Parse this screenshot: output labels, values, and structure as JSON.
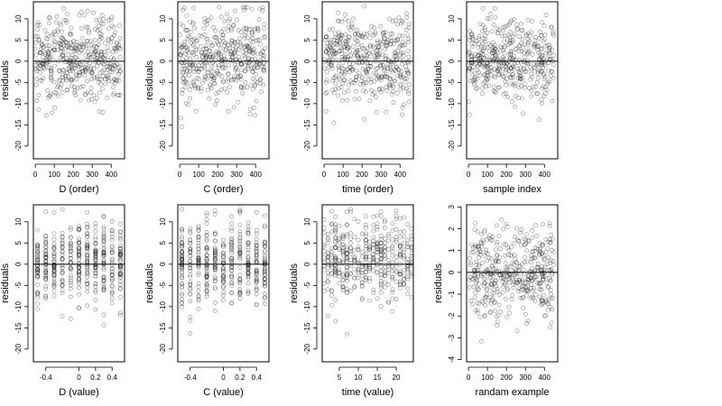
{
  "chart_data": [
    {
      "type": "scatter",
      "xlabel": "D (order)",
      "ylabel": "residuals",
      "xlim": [
        -10,
        470
      ],
      "ylim": [
        -23,
        14
      ],
      "xticks": [
        0,
        100,
        200,
        300,
        400
      ],
      "yticks": [
        -20,
        -15,
        -10,
        -5,
        0,
        5,
        10
      ],
      "reference_line_y": 0,
      "grid": false,
      "n_points": 450,
      "x_distribution": "uniform 0-450",
      "residual_summary": {
        "center": 0.5,
        "spread": 5,
        "min": -21,
        "max": 13
      }
    },
    {
      "type": "scatter",
      "xlabel": "C (order)",
      "ylabel": "residuals",
      "xlim": [
        -10,
        470
      ],
      "ylim": [
        -23,
        14
      ],
      "xticks": [
        0,
        100,
        200,
        300,
        400
      ],
      "yticks": [
        -20,
        -15,
        -10,
        -5,
        0,
        5,
        10
      ],
      "reference_line_y": 0,
      "grid": false,
      "n_points": 450,
      "x_distribution": "uniform 0-450",
      "residual_summary": {
        "center": 0.5,
        "spread": 5,
        "min": -21,
        "max": 13
      }
    },
    {
      "type": "scatter",
      "xlabel": "time (order)",
      "ylabel": "residuals",
      "xlim": [
        -10,
        470
      ],
      "ylim": [
        -23,
        14
      ],
      "xticks": [
        0,
        100,
        200,
        300,
        400
      ],
      "yticks": [
        -20,
        -15,
        -10,
        -5,
        0,
        5,
        10
      ],
      "reference_line_y": 0,
      "grid": false,
      "n_points": 450,
      "x_distribution": "uniform 0-450",
      "residual_summary": {
        "center": 0.5,
        "spread": 5,
        "min": -21,
        "max": 13
      }
    },
    {
      "type": "scatter",
      "xlabel": "sample index",
      "ylabel": "residuals",
      "xlim": [
        -10,
        470
      ],
      "ylim": [
        -23,
        14
      ],
      "xticks": [
        0,
        100,
        200,
        300,
        400
      ],
      "yticks": [
        -20,
        -15,
        -10,
        -5,
        0,
        5,
        10
      ],
      "reference_line_y": 0,
      "grid": false,
      "n_points": 450,
      "x_distribution": "uniform 0-450",
      "residual_summary": {
        "center": 0.5,
        "spread": 5,
        "min": -21,
        "max": 13
      }
    },
    {
      "type": "scatter",
      "xlabel": "D (value)",
      "ylabel": "residuals",
      "xlim": [
        -0.55,
        0.55
      ],
      "ylim": [
        -23,
        14
      ],
      "xticks": [
        -0.4,
        0.0,
        0.2,
        0.4
      ],
      "yticks": [
        -20,
        -15,
        -10,
        -5,
        0,
        5,
        10
      ],
      "reference_line_y": 0,
      "grid": false,
      "n_points": 450,
      "x_distribution": "discrete levels -0.5 to 0.5",
      "residual_summary": {
        "center": 0.5,
        "spread": 5,
        "min": -21,
        "max": 13
      }
    },
    {
      "type": "scatter",
      "xlabel": "C (value)",
      "ylabel": "residuals",
      "xlim": [
        -0.55,
        0.55
      ],
      "ylim": [
        -23,
        14
      ],
      "xticks": [
        -0.4,
        0.0,
        0.2,
        0.4
      ],
      "yticks": [
        -20,
        -15,
        -10,
        -5,
        0,
        5,
        10
      ],
      "reference_line_y": 0,
      "grid": false,
      "n_points": 450,
      "x_distribution": "discrete levels -0.5 to 0.5",
      "residual_summary": {
        "center": 0.5,
        "spread": 5,
        "min": -21,
        "max": 13
      }
    },
    {
      "type": "scatter",
      "xlabel": "time (value)",
      "ylabel": "residuals",
      "xlim": [
        0.5,
        24.5
      ],
      "ylim": [
        -23,
        14
      ],
      "xticks": [
        5,
        10,
        15,
        20
      ],
      "yticks": [
        -20,
        -15,
        -10,
        -5,
        0,
        5,
        10
      ],
      "reference_line_y": 0,
      "grid": false,
      "n_points": 450,
      "x_distribution": "discrete levels 1-24",
      "residual_summary": {
        "center": 0.5,
        "spread": 5,
        "min": -21,
        "max": 13
      }
    },
    {
      "type": "scatter",
      "xlabel": "randam example",
      "ylabel": "residuals",
      "xlim": [
        -10,
        470
      ],
      "ylim": [
        -4.1,
        3.1
      ],
      "xticks": [
        0,
        100,
        200,
        300,
        400
      ],
      "yticks": [
        -4,
        -3,
        -2,
        -1,
        0,
        1,
        2,
        3
      ],
      "reference_line_y": 0,
      "grid": false,
      "n_points": 450,
      "x_distribution": "uniform 0-450",
      "residual_summary": {
        "center": 0.0,
        "spread": 1,
        "min": -3.9,
        "max": 2.8
      }
    }
  ]
}
